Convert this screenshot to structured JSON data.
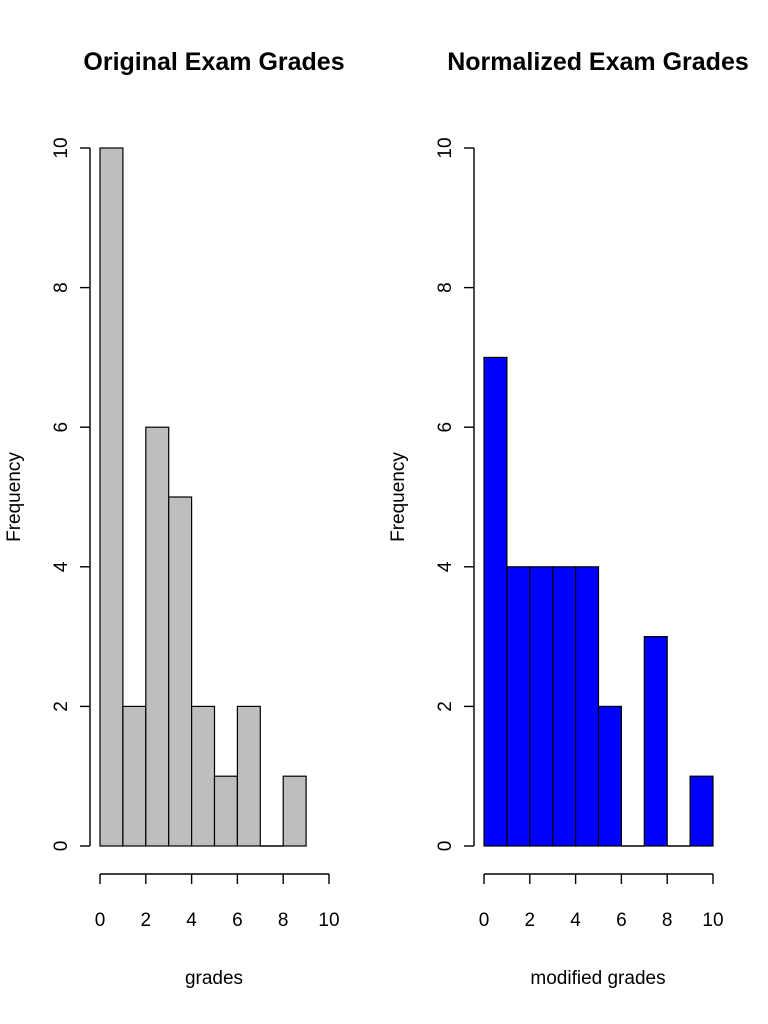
{
  "chart_data": [
    {
      "type": "histogram",
      "title": "Original Exam Grades",
      "xlabel": "grades",
      "ylabel": "Frequency",
      "bar_color": "#bebebe",
      "bin_edges": [
        0,
        1,
        2,
        3,
        4,
        5,
        6,
        7,
        8,
        9
      ],
      "values": [
        10,
        2,
        6,
        5,
        2,
        1,
        2,
        0,
        1
      ],
      "xlim": [
        0,
        10
      ],
      "ylim": [
        0,
        10
      ],
      "x_ticks": [
        0,
        2,
        4,
        6,
        8,
        10
      ],
      "x_tick_labels": [
        "0",
        "2",
        "4",
        "6",
        "8",
        "10"
      ],
      "y_ticks": [
        0,
        2,
        4,
        6,
        8,
        10
      ],
      "y_tick_labels": [
        "0",
        "2",
        "4",
        "6",
        "8",
        "10"
      ]
    },
    {
      "type": "histogram",
      "title": "Normalized Exam Grades",
      "xlabel": "modified grades",
      "ylabel": "Frequency",
      "bar_color": "#0000ff",
      "bin_edges": [
        0,
        1,
        2,
        3,
        4,
        5,
        6,
        7,
        8,
        9,
        10
      ],
      "values": [
        7,
        4,
        4,
        4,
        4,
        2,
        0,
        3,
        0,
        1
      ],
      "xlim": [
        0,
        10
      ],
      "ylim": [
        0,
        10
      ],
      "x_ticks": [
        0,
        2,
        4,
        6,
        8,
        10
      ],
      "x_tick_labels": [
        "0",
        "2",
        "4",
        "6",
        "8",
        "10"
      ],
      "y_ticks": [
        0,
        2,
        4,
        6,
        8,
        10
      ],
      "y_tick_labels": [
        "0",
        "2",
        "4",
        "6",
        "8",
        "10"
      ]
    }
  ]
}
